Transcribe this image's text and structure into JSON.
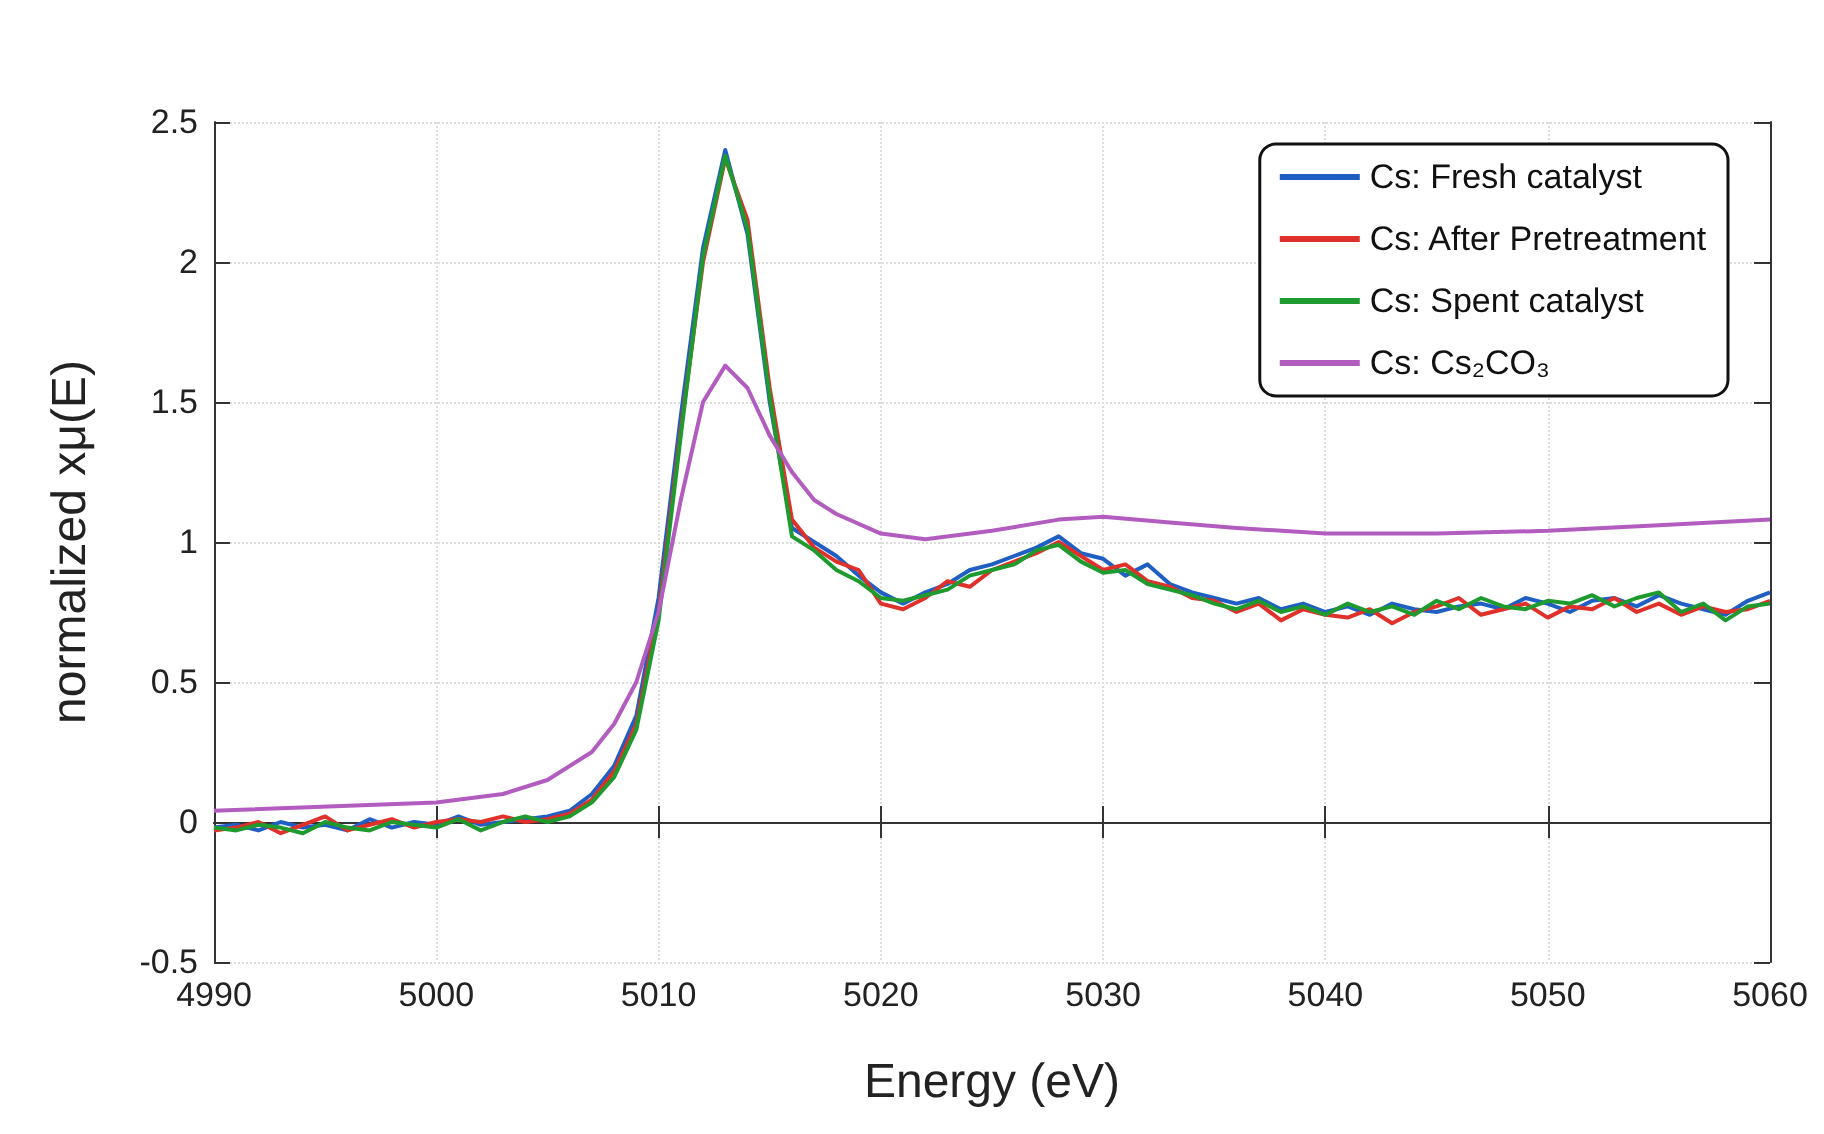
{
  "chart_data": {
    "type": "line",
    "xlabel": "Energy (eV)",
    "ylabel": "normalized xμ(E)",
    "xlim": [
      4990,
      5060
    ],
    "xticks": [
      4990,
      5000,
      5010,
      5020,
      5030,
      5040,
      5050,
      5060
    ],
    "ylim": [
      -0.5,
      2.5
    ],
    "yticks": [
      -0.5,
      0,
      0.5,
      1,
      1.5,
      2,
      2.5
    ],
    "grid": true,
    "legend": "top right",
    "line_style": "solid",
    "marker": "none",
    "x": [
      4990,
      4991,
      4992,
      4993,
      4994,
      4995,
      4996,
      4997,
      4998,
      4999,
      5000,
      5001,
      5002,
      5003,
      5004,
      5005,
      5006,
      5007,
      5008,
      5009,
      5010,
      5011,
      5012,
      5013,
      5014,
      5015,
      5016,
      5017,
      5018,
      5019,
      5020,
      5021,
      5022,
      5023,
      5024,
      5025,
      5026,
      5027,
      5028,
      5029,
      5030,
      5031,
      5032,
      5033,
      5034,
      5035,
      5036,
      5037,
      5038,
      5039,
      5040,
      5041,
      5042,
      5043,
      5044,
      5045,
      5046,
      5047,
      5048,
      5049,
      5050,
      5051,
      5052,
      5053,
      5054,
      5055,
      5056,
      5057,
      5058,
      5059,
      5060
    ],
    "series": [
      {
        "name": "Cs: Fresh catalyst",
        "color": "#1f5fc4",
        "values": [
          -0.02,
          -0.01,
          -0.03,
          0.0,
          -0.02,
          -0.01,
          -0.03,
          0.01,
          -0.02,
          0.0,
          -0.01,
          0.02,
          -0.01,
          0.0,
          0.01,
          0.02,
          0.04,
          0.1,
          0.2,
          0.38,
          0.8,
          1.45,
          2.05,
          2.4,
          2.1,
          1.5,
          1.05,
          1.0,
          0.95,
          0.88,
          0.82,
          0.78,
          0.82,
          0.85,
          0.9,
          0.92,
          0.95,
          0.98,
          1.02,
          0.96,
          0.94,
          0.88,
          0.92,
          0.85,
          0.82,
          0.8,
          0.78,
          0.8,
          0.76,
          0.78,
          0.75,
          0.77,
          0.74,
          0.78,
          0.76,
          0.75,
          0.77,
          0.78,
          0.76,
          0.8,
          0.78,
          0.75,
          0.79,
          0.8,
          0.77,
          0.81,
          0.78,
          0.76,
          0.74,
          0.79,
          0.82
        ]
      },
      {
        "name": "Cs: After Pretreatment",
        "color": "#e0302a",
        "values": [
          -0.03,
          -0.02,
          0.0,
          -0.04,
          -0.01,
          0.02,
          -0.03,
          -0.01,
          0.01,
          -0.02,
          0.0,
          0.01,
          0.0,
          0.02,
          0.0,
          0.01,
          0.03,
          0.08,
          0.18,
          0.35,
          0.75,
          1.4,
          2.0,
          2.37,
          2.15,
          1.55,
          1.08,
          0.98,
          0.93,
          0.9,
          0.78,
          0.76,
          0.8,
          0.86,
          0.84,
          0.9,
          0.93,
          0.96,
          1.0,
          0.95,
          0.9,
          0.92,
          0.86,
          0.84,
          0.8,
          0.79,
          0.75,
          0.78,
          0.72,
          0.76,
          0.74,
          0.73,
          0.76,
          0.71,
          0.75,
          0.77,
          0.8,
          0.74,
          0.76,
          0.78,
          0.73,
          0.77,
          0.76,
          0.8,
          0.75,
          0.78,
          0.74,
          0.77,
          0.75,
          0.76,
          0.79
        ]
      },
      {
        "name": "Cs: Spent catalyst",
        "color": "#1f9a2e",
        "values": [
          -0.02,
          -0.03,
          -0.01,
          -0.02,
          -0.04,
          0.0,
          -0.02,
          -0.03,
          0.0,
          -0.01,
          -0.02,
          0.01,
          -0.03,
          0.0,
          0.02,
          0.0,
          0.02,
          0.07,
          0.16,
          0.33,
          0.72,
          1.38,
          2.02,
          2.38,
          2.12,
          1.52,
          1.02,
          0.97,
          0.9,
          0.86,
          0.8,
          0.79,
          0.81,
          0.83,
          0.88,
          0.9,
          0.92,
          0.97,
          0.99,
          0.93,
          0.89,
          0.9,
          0.85,
          0.83,
          0.81,
          0.78,
          0.76,
          0.79,
          0.75,
          0.77,
          0.74,
          0.78,
          0.75,
          0.77,
          0.74,
          0.79,
          0.76,
          0.8,
          0.77,
          0.76,
          0.79,
          0.78,
          0.81,
          0.77,
          0.8,
          0.82,
          0.75,
          0.78,
          0.72,
          0.77,
          0.78
        ]
      },
      {
        "name": "Cs: Cs₂CO₃",
        "color": "#b25cc0",
        "x": [
          4990,
          5000,
          5003,
          5005,
          5007,
          5008,
          5009,
          5010,
          5011,
          5012,
          5013,
          5014,
          5015,
          5016,
          5017,
          5018,
          5020,
          5022,
          5025,
          5028,
          5030,
          5033,
          5036,
          5040,
          5045,
          5050,
          5055,
          5060
        ],
        "values": [
          0.04,
          0.07,
          0.1,
          0.15,
          0.25,
          0.35,
          0.5,
          0.75,
          1.15,
          1.5,
          1.63,
          1.55,
          1.38,
          1.25,
          1.15,
          1.1,
          1.03,
          1.01,
          1.04,
          1.08,
          1.09,
          1.07,
          1.05,
          1.03,
          1.03,
          1.04,
          1.06,
          1.08
        ]
      }
    ]
  }
}
